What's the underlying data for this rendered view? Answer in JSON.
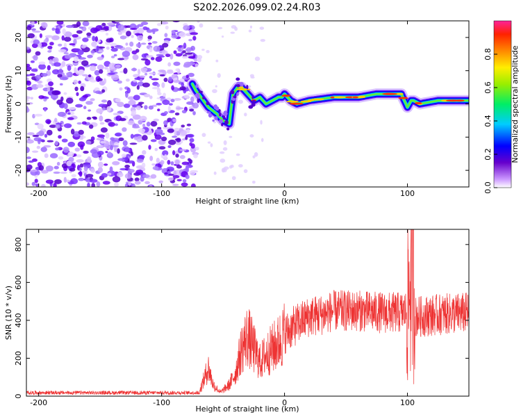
{
  "title": "S202.2026.099.02.24.R03",
  "chart_data": [
    {
      "type": "heatmap",
      "name": "spectrogram",
      "xlabel": "Height of straight line (km)",
      "ylabel": "Frequency (Hz)",
      "xlim": [
        -210,
        150
      ],
      "ylim": [
        -25,
        25
      ],
      "xticks": [
        -200,
        -100,
        0,
        100
      ],
      "yticks": [
        -20,
        -10,
        0,
        10,
        20
      ],
      "colorbar": {
        "label": "Normalized spectral amplitude",
        "range": [
          0,
          1
        ],
        "ticks": [
          0.0,
          0.2,
          0.4,
          0.6,
          0.8
        ]
      },
      "noise_region_x": [
        -210,
        -72
      ],
      "ridge": {
        "x": [
          -75,
          -72,
          -68,
          -62,
          -55,
          -50,
          -45,
          -42,
          -38,
          -35,
          -30,
          -25,
          -20,
          -15,
          -10,
          -5,
          -2,
          0,
          5,
          10,
          20,
          40,
          60,
          75,
          85,
          95,
          100,
          103,
          105,
          110,
          125,
          150
        ],
        "freq": [
          6,
          4,
          2,
          -1,
          -3,
          -5,
          -6,
          3,
          5,
          5,
          3,
          1,
          2,
          0,
          1,
          2,
          2,
          3,
          1,
          0,
          1,
          2,
          2,
          3,
          3,
          3,
          -1,
          1,
          1,
          0,
          1,
          1
        ]
      }
    },
    {
      "type": "line",
      "name": "snr",
      "xlabel": "Height of straight line (km)",
      "ylabel": "SNR (10 * v/v)",
      "xlim": [
        -210,
        150
      ],
      "ylim": [
        0,
        880
      ],
      "xticks": [
        -200,
        -100,
        0,
        100
      ],
      "yticks": [
        0,
        200,
        400,
        600,
        800
      ],
      "color": "#ee3333",
      "envelope": {
        "x": [
          -210,
          -70,
          -62,
          -58,
          -52,
          -45,
          -40,
          -35,
          -30,
          -25,
          -20,
          -15,
          -10,
          -5,
          0,
          10,
          20,
          30,
          40,
          60,
          80,
          95,
          100,
          102,
          104,
          106,
          110,
          125,
          150
        ],
        "y": [
          10,
          10,
          150,
          60,
          20,
          60,
          120,
          250,
          320,
          250,
          180,
          220,
          250,
          280,
          330,
          380,
          420,
          430,
          450,
          450,
          440,
          440,
          450,
          600,
          860,
          420,
          420,
          430,
          440
        ]
      }
    }
  ]
}
